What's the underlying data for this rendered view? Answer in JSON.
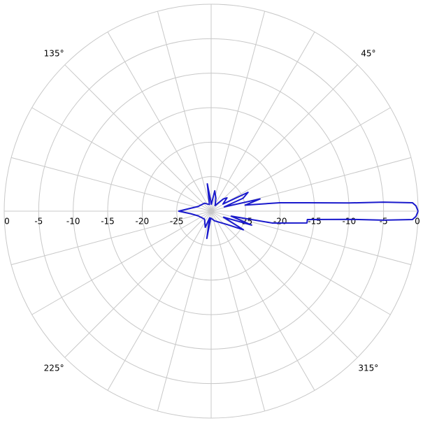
{
  "chart_data": {
    "type": "polar",
    "rlim": [
      -30,
      0
    ],
    "rticks": [
      -25,
      -20,
      -15,
      -10,
      -5,
      0
    ],
    "angle_ticks": [
      {
        "value": 45,
        "label": "45°"
      },
      {
        "value": 135,
        "label": "135°"
      },
      {
        "value": 225,
        "label": "225°"
      },
      {
        "value": 315,
        "label": "315°"
      }
    ],
    "angle_grid_step": 15,
    "grid": true,
    "series": [
      {
        "color": "#1a1acc",
        "theta": [
          0,
          1.5,
          2.4,
          3,
          3.4,
          5,
          7,
          10,
          14,
          18,
          22,
          27,
          31,
          40,
          45,
          55,
          70,
          80,
          88,
          98,
          104,
          130,
          160,
          172,
          180,
          187,
          200,
          230,
          250,
          257,
          261,
          266,
          290,
          320,
          330,
          334,
          341,
          346,
          349,
          353,
          355,
          356.6,
          357,
          357.6,
          358.5,
          360
        ],
        "r": [
          0,
          -0.3,
          -0.8,
          -5,
          -10,
          -16,
          -20,
          -25,
          -22.7,
          -28,
          -25,
          -24,
          -28,
          -27,
          -27.5,
          -29,
          -28,
          -27,
          -29,
          -26,
          -29,
          -28.5,
          -28,
          -27,
          -25.3,
          -27,
          -28,
          -28.5,
          -27.5,
          -29,
          -26,
          -29,
          -28.5,
          -27,
          -24.6,
          -28,
          -23.8,
          -27,
          -21,
          -16,
          -16,
          -10,
          -5,
          -0.8,
          -0.3,
          0
        ]
      }
    ]
  }
}
